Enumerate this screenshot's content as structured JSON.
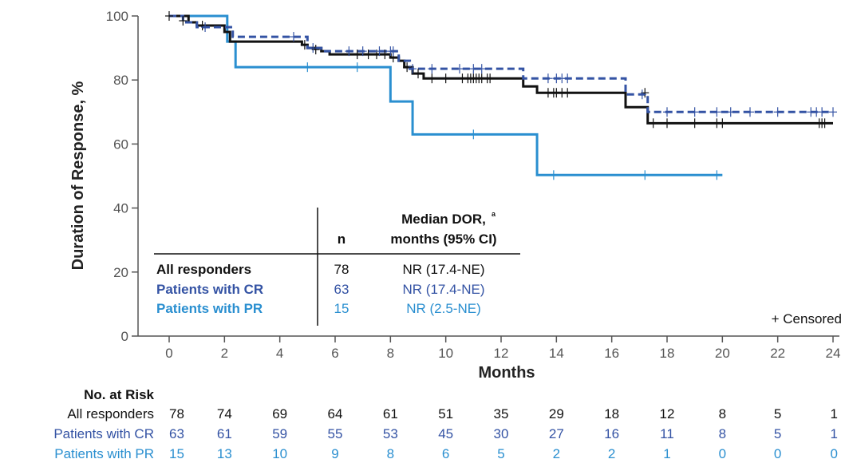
{
  "colors": {
    "all": "#111111",
    "cr": "#3453A4",
    "pr": "#2A8FD0",
    "axis": "#555555"
  },
  "chart_data": {
    "type": "line",
    "plot_kind": "kaplan-meier",
    "xlabel": "Months",
    "ylabel": "Duration of Response, %",
    "xlim": [
      0,
      24
    ],
    "ylim": [
      0,
      100
    ],
    "xticks": [
      "0",
      "2",
      "4",
      "6",
      "8",
      "10",
      "12",
      "14",
      "16",
      "18",
      "20",
      "22",
      "24"
    ],
    "yticks": [
      "0",
      "20",
      "40",
      "60",
      "80",
      "100"
    ],
    "grid": false,
    "censored_label": "+ Censored",
    "series": [
      {
        "name": "All responders",
        "key": "all",
        "dash": false,
        "steps": [
          [
            0,
            100
          ],
          [
            0.7,
            98
          ],
          [
            1.0,
            97
          ],
          [
            2.0,
            95
          ],
          [
            2.2,
            92
          ],
          [
            4.8,
            91
          ],
          [
            5.0,
            90
          ],
          [
            5.5,
            89
          ],
          [
            5.8,
            88
          ],
          [
            8.0,
            87
          ],
          [
            8.3,
            86
          ],
          [
            8.5,
            84
          ],
          [
            8.8,
            82
          ],
          [
            9.2,
            80.5
          ],
          [
            12.5,
            80.5
          ],
          [
            12.8,
            78
          ],
          [
            13.3,
            76
          ],
          [
            16.5,
            76
          ],
          [
            16.5,
            71.5
          ],
          [
            17.3,
            71.5
          ],
          [
            17.3,
            66.5
          ],
          [
            24,
            66.5
          ]
        ],
        "censored": [
          [
            0,
            100
          ],
          [
            0.5,
            98.5
          ],
          [
            1.2,
            97
          ],
          [
            4.9,
            91
          ],
          [
            5.3,
            89.5
          ],
          [
            6.8,
            88
          ],
          [
            7.2,
            88
          ],
          [
            7.5,
            88
          ],
          [
            7.8,
            88
          ],
          [
            8.1,
            87
          ],
          [
            8.6,
            84
          ],
          [
            9.0,
            82
          ],
          [
            9.5,
            80.5
          ],
          [
            10.0,
            80.5
          ],
          [
            10.6,
            80.5
          ],
          [
            10.8,
            80.5
          ],
          [
            10.9,
            80.5
          ],
          [
            11.0,
            80.5
          ],
          [
            11.1,
            80.5
          ],
          [
            11.2,
            80.5
          ],
          [
            11.3,
            80.5
          ],
          [
            11.5,
            80.5
          ],
          [
            11.6,
            80.5
          ],
          [
            13.7,
            76
          ],
          [
            13.9,
            76
          ],
          [
            14.0,
            76
          ],
          [
            14.2,
            76
          ],
          [
            14.4,
            76
          ],
          [
            17.2,
            76
          ],
          [
            17.5,
            66.5
          ],
          [
            18.0,
            66.5
          ],
          [
            19.0,
            66.5
          ],
          [
            19.8,
            66.5
          ],
          [
            20.0,
            66.5
          ],
          [
            23.5,
            66.5
          ],
          [
            23.6,
            66.5
          ],
          [
            23.7,
            66.5
          ]
        ]
      },
      {
        "name": "Patients with CR",
        "key": "cr",
        "dash": true,
        "steps": [
          [
            0,
            100
          ],
          [
            0.5,
            98
          ],
          [
            1.0,
            96.5
          ],
          [
            2.0,
            96.5
          ],
          [
            2.3,
            93.5
          ],
          [
            5.0,
            90
          ],
          [
            5.5,
            89
          ],
          [
            8.3,
            86
          ],
          [
            8.7,
            83.5
          ],
          [
            12.8,
            83.5
          ],
          [
            12.8,
            80.5
          ],
          [
            16.5,
            80.5
          ],
          [
            16.5,
            75.5
          ],
          [
            17.3,
            75.5
          ],
          [
            17.3,
            70
          ],
          [
            24,
            70
          ]
        ],
        "censored": [
          [
            1.3,
            96.5
          ],
          [
            4.5,
            93.5
          ],
          [
            5.2,
            90
          ],
          [
            6.5,
            89
          ],
          [
            7.0,
            89
          ],
          [
            7.6,
            89
          ],
          [
            8.0,
            89
          ],
          [
            8.1,
            89
          ],
          [
            8.8,
            83.5
          ],
          [
            9.5,
            83.5
          ],
          [
            10.5,
            83.5
          ],
          [
            11.0,
            83.5
          ],
          [
            11.3,
            83.5
          ],
          [
            13.7,
            80.5
          ],
          [
            14.0,
            80.5
          ],
          [
            14.2,
            80.5
          ],
          [
            14.4,
            80.5
          ],
          [
            17.1,
            75.5
          ],
          [
            18.0,
            70
          ],
          [
            19.0,
            70
          ],
          [
            19.8,
            70
          ],
          [
            20.3,
            70
          ],
          [
            21.0,
            70
          ],
          [
            22.0,
            70
          ],
          [
            23.2,
            70
          ],
          [
            23.4,
            70
          ],
          [
            23.6,
            70
          ],
          [
            24,
            70
          ]
        ]
      },
      {
        "name": "Patients with PR",
        "key": "pr",
        "dash": false,
        "steps": [
          [
            0,
            100
          ],
          [
            2.1,
            100
          ],
          [
            2.1,
            92
          ],
          [
            2.4,
            92
          ],
          [
            2.4,
            84
          ],
          [
            8.0,
            84
          ],
          [
            8.0,
            73.3
          ],
          [
            8.8,
            73.3
          ],
          [
            8.8,
            63
          ],
          [
            13.3,
            63
          ],
          [
            13.3,
            50.3
          ],
          [
            20,
            50.3
          ]
        ],
        "censored": [
          [
            5.0,
            84
          ],
          [
            6.8,
            84
          ],
          [
            11.0,
            63
          ],
          [
            13.9,
            50.3
          ],
          [
            17.2,
            50.3
          ],
          [
            19.8,
            50.3
          ]
        ]
      }
    ],
    "legend_table": {
      "header_n": "n",
      "header_median_line1": "Median DOR,",
      "header_median_sup": "a",
      "header_median_line2": "months (95% CI)",
      "rows": [
        {
          "label": "All responders",
          "n": "78",
          "median": "NR (17.4-NE)",
          "key": "all"
        },
        {
          "label": "Patients with CR",
          "n": "63",
          "median": "NR (17.4-NE)",
          "key": "cr"
        },
        {
          "label": "Patients with PR",
          "n": "15",
          "median": "NR (2.5-NE)",
          "key": "pr"
        }
      ]
    },
    "risk_table": {
      "title": "No. at Risk",
      "rows": [
        {
          "label": "All responders",
          "key": "all",
          "values": [
            "78",
            "74",
            "69",
            "64",
            "61",
            "51",
            "35",
            "29",
            "18",
            "12",
            "8",
            "5",
            "1"
          ]
        },
        {
          "label": "Patients with CR",
          "key": "cr",
          "values": [
            "63",
            "61",
            "59",
            "55",
            "53",
            "45",
            "30",
            "27",
            "16",
            "11",
            "8",
            "5",
            "1"
          ]
        },
        {
          "label": "Patients with PR",
          "key": "pr",
          "values": [
            "15",
            "13",
            "10",
            "9",
            "8",
            "6",
            "5",
            "2",
            "2",
            "1",
            "0",
            "0",
            "0"
          ]
        }
      ]
    }
  }
}
